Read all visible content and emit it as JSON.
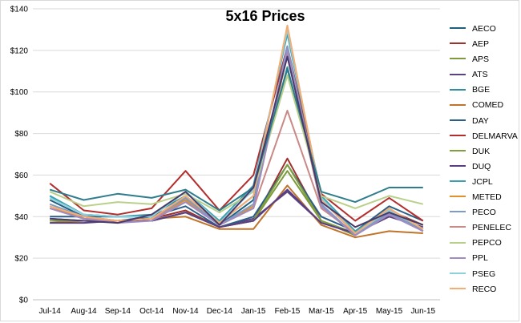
{
  "chart_data": {
    "type": "line",
    "title": "5x16 Prices",
    "xlabel": "",
    "ylabel": "",
    "ylim": [
      0,
      140
    ],
    "y_ticks": [
      "$0",
      "$20",
      "$40",
      "$60",
      "$80",
      "$100",
      "$120",
      "$140"
    ],
    "y_tick_values": [
      0,
      20,
      40,
      60,
      80,
      100,
      120,
      140
    ],
    "categories": [
      "Jul-14",
      "Aug-14",
      "Sep-14",
      "Oct-14",
      "Nov-14",
      "Dec-14",
      "Jan-15",
      "Feb-15",
      "Mar-15",
      "Apr-15",
      "May-15",
      "Jun-15"
    ],
    "grid": "horizontal",
    "legend_position": "right",
    "series": [
      {
        "name": "AECO",
        "color": "#1f5f7f",
        "values": [
          48,
          40,
          40,
          40,
          48,
          36,
          48,
          120,
          45,
          31,
          42,
          33
        ]
      },
      {
        "name": "AEP",
        "color": "#a0302a",
        "values": [
          38,
          38,
          38,
          39,
          43,
          35,
          38,
          68,
          38,
          31,
          43,
          36
        ]
      },
      {
        "name": "APS",
        "color": "#7e9a3a",
        "values": [
          38,
          38,
          38,
          38,
          42,
          35,
          38,
          62,
          38,
          31,
          42,
          36
        ]
      },
      {
        "name": "ATS",
        "color": "#5b4280",
        "values": [
          39,
          38,
          38,
          38,
          42,
          35,
          39,
          52,
          37,
          32,
          40,
          35
        ]
      },
      {
        "name": "BGE",
        "color": "#2f8fa0",
        "values": [
          50,
          41,
          40,
          41,
          50,
          37,
          50,
          112,
          48,
          32,
          43,
          34
        ]
      },
      {
        "name": "COMED",
        "color": "#c0732a",
        "values": [
          37,
          38,
          38,
          39,
          40,
          34,
          34,
          55,
          36,
          30,
          33,
          32
        ]
      },
      {
        "name": "DAY",
        "color": "#2a5f8a",
        "values": [
          40,
          40,
          38,
          40,
          45,
          35,
          40,
          65,
          40,
          33,
          45,
          38
        ]
      },
      {
        "name": "DELMARVA",
        "color": "#b32d2d",
        "values": [
          56,
          43,
          41,
          44,
          62,
          43,
          60,
          122,
          51,
          38,
          49,
          38
        ]
      },
      {
        "name": "DUK",
        "color": "#7fa03c",
        "values": [
          38,
          38,
          38,
          38,
          42,
          35,
          38,
          65,
          38,
          32,
          42,
          36
        ]
      },
      {
        "name": "DUQ",
        "color": "#5a3e85",
        "values": [
          37,
          37,
          38,
          38,
          42,
          35,
          38,
          53,
          37,
          32,
          41,
          34
        ]
      },
      {
        "name": "JCPL",
        "color": "#3aa0b2",
        "values": [
          50,
          41,
          40,
          40,
          52,
          38,
          55,
          128,
          50,
          33,
          43,
          34
        ]
      },
      {
        "name": "METED",
        "color": "#e0902c",
        "values": [
          45,
          39,
          38,
          39,
          48,
          36,
          45,
          118,
          45,
          31,
          42,
          33
        ]
      },
      {
        "name": "PECO",
        "color": "#7d9bc9",
        "values": [
          46,
          40,
          38,
          39,
          49,
          36,
          46,
          122,
          46,
          31,
          42,
          33
        ]
      },
      {
        "name": "PENELEC",
        "color": "#c98a87",
        "values": [
          44,
          39,
          38,
          39,
          47,
          36,
          44,
          91,
          44,
          32,
          43,
          34
        ]
      },
      {
        "name": "PEPCO",
        "color": "#b9d08a",
        "values": [
          52,
          45,
          47,
          46,
          51,
          42,
          52,
          108,
          50,
          44,
          50,
          46
        ]
      },
      {
        "name": "PPL",
        "color": "#9e8cc3",
        "values": [
          44,
          39,
          37,
          38,
          47,
          36,
          44,
          120,
          45,
          31,
          41,
          33
        ]
      },
      {
        "name": "PSEG",
        "color": "#8fd0dd",
        "values": [
          49,
          41,
          40,
          40,
          52,
          37,
          53,
          130,
          49,
          32,
          43,
          34
        ]
      },
      {
        "name": "RECO",
        "color": "#f5ad72",
        "values": [
          45,
          40,
          38,
          39,
          50,
          37,
          50,
          132,
          48,
          32,
          44,
          34
        ]
      },
      {
        "name": "",
        "color": "#2e7d8c",
        "values": [
          53,
          48,
          51,
          49,
          53,
          43,
          54,
          111,
          52,
          47,
          54,
          54
        ]
      },
      {
        "name": "",
        "color": "#4a3a6a",
        "values": [
          39,
          38,
          37,
          41,
          52,
          36,
          54,
          117,
          47,
          35,
          42,
          36
        ]
      }
    ]
  }
}
